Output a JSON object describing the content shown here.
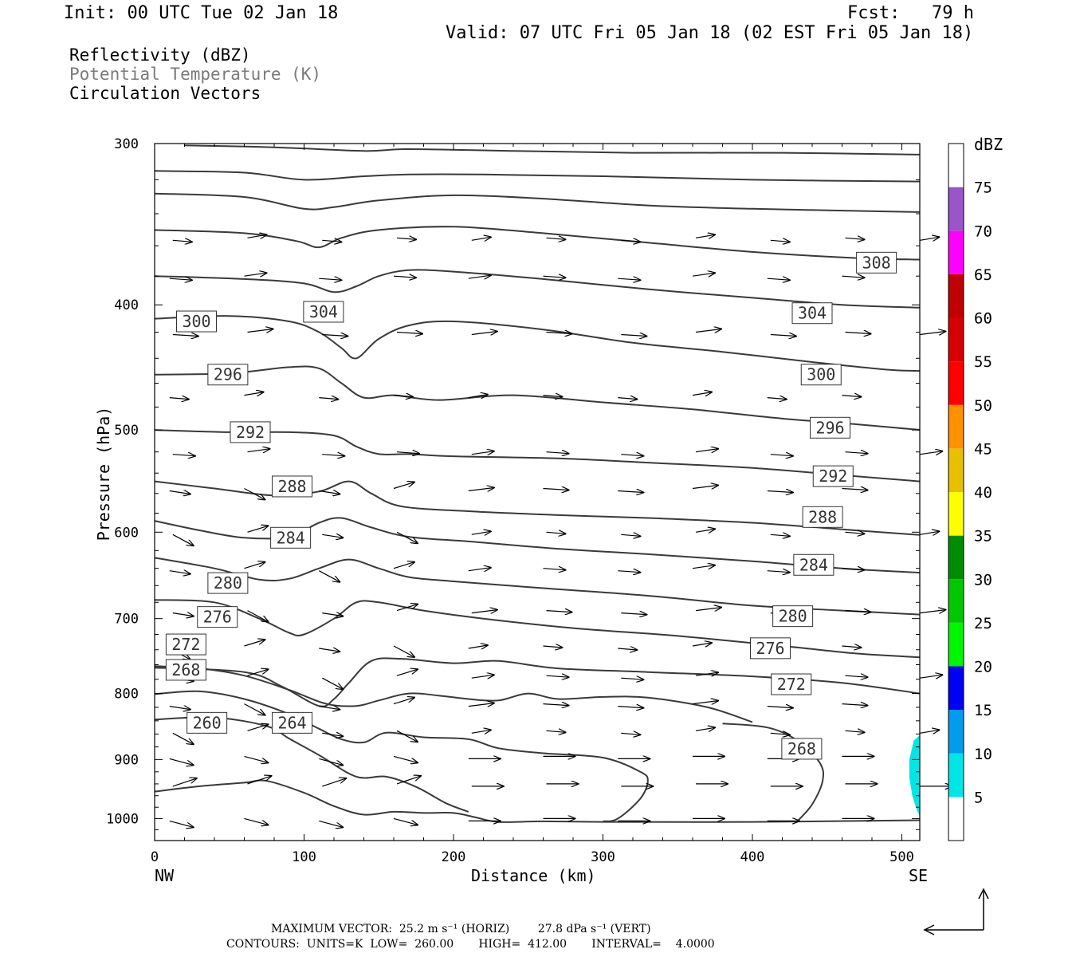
{
  "header": {
    "init": "Init: 00 UTC Tue 02 Jan 18",
    "fcst": "Fcst:   79 h",
    "valid": "Valid: 07 UTC Fri 05 Jan 18 (02 EST Fri 05 Jan 18)"
  },
  "fields": {
    "reflectivity": "Reflectivity (dBZ)",
    "theta": "Potential Temperature (K)",
    "vectors": "Circulation Vectors"
  },
  "chart_data": {
    "type": "line",
    "xlabel": "Distance (km)",
    "ylabel": "Pressure (hPa)",
    "xlim": [
      0,
      512
    ],
    "ylim": [
      1040,
      300
    ],
    "y_scale": "log",
    "x_ticks": [
      "0",
      "100",
      "200",
      "300",
      "400",
      "500"
    ],
    "x_tick_values": [
      0,
      100,
      200,
      300,
      400,
      500
    ],
    "y_ticks": [
      "300",
      "400",
      "500",
      "600",
      "700",
      "800",
      "900",
      "1000"
    ],
    "y_tick_values": [
      300,
      400,
      500,
      600,
      700,
      800,
      900,
      1000
    ],
    "endpoints": {
      "left": "NW",
      "right": "SE"
    },
    "isentropes": [
      {
        "label": "260",
        "lx": 35,
        "ly": 843,
        "pts": [
          [
            0,
            953
          ],
          [
            30,
            944
          ],
          [
            60,
            938
          ],
          [
            75,
            935
          ],
          [
            100,
            955
          ],
          [
            120,
            978
          ],
          [
            140,
            993
          ],
          [
            160,
            988
          ],
          [
            180,
            990
          ],
          [
            200,
            990
          ],
          [
            215,
            998
          ],
          [
            230,
            1006
          ],
          [
            260,
            1005
          ],
          [
            300,
            1006
          ],
          [
            400,
            1006
          ],
          [
            512,
            1003
          ]
        ]
      },
      {
        "label": "264",
        "lx": 92,
        "ly": 843,
        "pts": [
          [
            0,
            838
          ],
          [
            40,
            835
          ],
          [
            75,
            848
          ],
          [
            90,
            867
          ],
          [
            110,
            893
          ],
          [
            135,
            928
          ],
          [
            155,
            928
          ],
          [
            175,
            945
          ],
          [
            195,
            973
          ],
          [
            210,
            988
          ]
        ]
      },
      {
        "label": "268",
        "lx": 433,
        "ly": 883,
        "pts": [
          [
            0,
            801
          ],
          [
            30,
            797
          ],
          [
            60,
            808
          ],
          [
            90,
            830
          ],
          [
            110,
            852
          ],
          [
            125,
            868
          ],
          [
            140,
            873
          ],
          [
            155,
            858
          ],
          [
            180,
            865
          ],
          [
            210,
            868
          ],
          [
            230,
            882
          ],
          [
            260,
            890
          ],
          [
            300,
            897
          ],
          [
            325,
            920
          ],
          [
            330,
            935
          ],
          [
            325,
            965
          ],
          [
            310,
            1000
          ],
          [
            300,
            1005
          ]
        ]
      },
      {
        "label": "268b",
        "hide": true,
        "pts": [
          [
            380,
            844
          ],
          [
            410,
            850
          ],
          [
            430,
            870
          ],
          [
            445,
            905
          ],
          [
            447,
            935
          ],
          [
            440,
            975
          ],
          [
            430,
            1005
          ]
        ]
      },
      {
        "label": "272",
        "lx": 426,
        "ly": 787,
        "pts": [
          [
            0,
            762
          ],
          [
            30,
            765
          ],
          [
            60,
            775
          ],
          [
            90,
            795
          ],
          [
            115,
            815
          ],
          [
            135,
            818
          ],
          [
            150,
            810
          ],
          [
            170,
            800
          ],
          [
            190,
            803
          ],
          [
            210,
            808
          ],
          [
            230,
            810
          ],
          [
            250,
            800
          ],
          [
            270,
            808
          ],
          [
            300,
            805
          ],
          [
            330,
            806
          ],
          [
            370,
            820
          ],
          [
            400,
            842
          ]
        ]
      },
      {
        "label": "272b",
        "hide": true,
        "pts": [
          [
            0,
            764
          ],
          [
            60,
            770
          ],
          [
            85,
            790
          ],
          [
            110,
            818
          ],
          [
            120,
            808
          ],
          [
            130,
            785
          ],
          [
            145,
            755
          ],
          [
            165,
            752
          ],
          [
            200,
            758
          ],
          [
            230,
            755
          ],
          [
            270,
            765
          ],
          [
            330,
            770
          ],
          [
            400,
            776
          ],
          [
            460,
            785
          ],
          [
            512,
            800
          ]
        ]
      },
      {
        "label": "276",
        "lx": 412,
        "ly": 738,
        "pts": [
          [
            0,
            677
          ],
          [
            40,
            680
          ],
          [
            70,
            700
          ],
          [
            90,
            718
          ],
          [
            100,
            720
          ],
          [
            120,
            700
          ],
          [
            135,
            680
          ],
          [
            150,
            680
          ],
          [
            180,
            690
          ],
          [
            220,
            700
          ],
          [
            280,
            712
          ],
          [
            350,
            722
          ],
          [
            420,
            735
          ],
          [
            470,
            745
          ],
          [
            512,
            750
          ]
        ]
      },
      {
        "label": "280",
        "lx": 427,
        "ly": 697,
        "pts": [
          [
            0,
            628
          ],
          [
            40,
            640
          ],
          [
            70,
            653
          ],
          [
            90,
            652
          ],
          [
            110,
            640
          ],
          [
            130,
            630
          ],
          [
            150,
            640
          ],
          [
            170,
            650
          ],
          [
            200,
            655
          ],
          [
            260,
            663
          ],
          [
            330,
            672
          ],
          [
            400,
            684
          ],
          [
            460,
            690
          ],
          [
            512,
            695
          ]
        ]
      },
      {
        "label": "284",
        "lx": 441,
        "ly": 636,
        "pts": [
          [
            0,
            588
          ],
          [
            30,
            598
          ],
          [
            60,
            606
          ],
          [
            90,
            605
          ],
          [
            110,
            590
          ],
          [
            125,
            585
          ],
          [
            145,
            595
          ],
          [
            170,
            605
          ],
          [
            210,
            610
          ],
          [
            270,
            618
          ],
          [
            330,
            624
          ],
          [
            400,
            632
          ],
          [
            460,
            640
          ],
          [
            512,
            645
          ]
        ]
      },
      {
        "label": "288",
        "lx": 447,
        "ly": 584,
        "pts": [
          [
            0,
            548
          ],
          [
            40,
            555
          ],
          [
            80,
            562
          ],
          [
            110,
            558
          ],
          [
            130,
            548
          ],
          [
            145,
            560
          ],
          [
            165,
            573
          ],
          [
            210,
            578
          ],
          [
            270,
            582
          ],
          [
            330,
            585
          ],
          [
            400,
            590
          ],
          [
            460,
            597
          ],
          [
            512,
            603
          ]
        ]
      },
      {
        "label": "292",
        "lx": 454,
        "ly": 543,
        "pts": [
          [
            0,
            500
          ],
          [
            50,
            502
          ],
          [
            90,
            502
          ],
          [
            120,
            505
          ],
          [
            135,
            515
          ],
          [
            150,
            522
          ],
          [
            170,
            522
          ],
          [
            200,
            524
          ],
          [
            270,
            526
          ],
          [
            330,
            530
          ],
          [
            400,
            535
          ],
          [
            460,
            542
          ],
          [
            512,
            548
          ]
        ]
      },
      {
        "label": "296",
        "lx": 452,
        "ly": 498,
        "pts": [
          [
            0,
            453
          ],
          [
            50,
            452
          ],
          [
            90,
            447
          ],
          [
            110,
            448
          ],
          [
            125,
            460
          ],
          [
            140,
            472
          ],
          [
            160,
            470
          ],
          [
            190,
            474
          ],
          [
            240,
            470
          ],
          [
            300,
            476
          ],
          [
            360,
            482
          ],
          [
            420,
            490
          ],
          [
            470,
            495
          ],
          [
            512,
            500
          ]
        ]
      },
      {
        "label": "300",
        "lx": 446,
        "ly": 453,
        "pts": [
          [
            0,
            410
          ],
          [
            50,
            408
          ],
          [
            90,
            412
          ],
          [
            110,
            420
          ],
          [
            125,
            432
          ],
          [
            135,
            440
          ],
          [
            150,
            425
          ],
          [
            170,
            415
          ],
          [
            200,
            412
          ],
          [
            260,
            418
          ],
          [
            320,
            428
          ],
          [
            380,
            435
          ],
          [
            440,
            443
          ],
          [
            490,
            449
          ],
          [
            512,
            450
          ]
        ]
      },
      {
        "label": "304",
        "lx": 440,
        "ly": 406,
        "pts": [
          [
            0,
            380
          ],
          [
            60,
            382
          ],
          [
            100,
            385
          ],
          [
            120,
            391
          ],
          [
            135,
            387
          ],
          [
            150,
            380
          ],
          [
            170,
            376
          ],
          [
            200,
            377
          ],
          [
            260,
            382
          ],
          [
            330,
            389
          ],
          [
            400,
            395
          ],
          [
            460,
            400
          ],
          [
            512,
            402
          ]
        ]
      },
      {
        "label": "308",
        "lx": 483,
        "ly": 371,
        "pts": [
          [
            0,
            350
          ],
          [
            60,
            352
          ],
          [
            95,
            357
          ],
          [
            110,
            361
          ],
          [
            125,
            355
          ],
          [
            150,
            350
          ],
          [
            200,
            348
          ],
          [
            260,
            352
          ],
          [
            330,
            358
          ],
          [
            400,
            364
          ],
          [
            470,
            368
          ],
          [
            512,
            369
          ]
        ]
      },
      {
        "label": "312",
        "hide": true,
        "pts": [
          [
            0,
            328
          ],
          [
            60,
            330
          ],
          [
            100,
            337
          ],
          [
            120,
            336
          ],
          [
            150,
            332
          ],
          [
            200,
            329
          ],
          [
            260,
            331
          ],
          [
            330,
            335
          ],
          [
            400,
            337
          ],
          [
            512,
            339
          ]
        ]
      },
      {
        "label": "316",
        "hide": true,
        "pts": [
          [
            0,
            315
          ],
          [
            60,
            316
          ],
          [
            100,
            320
          ],
          [
            140,
            318
          ],
          [
            170,
            317
          ],
          [
            220,
            317
          ],
          [
            300,
            318
          ],
          [
            400,
            320
          ],
          [
            512,
            321
          ]
        ]
      },
      {
        "label": "320",
        "hide": true,
        "pts": [
          [
            20,
            301
          ],
          [
            80,
            302
          ],
          [
            140,
            304
          ],
          [
            170,
            303
          ],
          [
            240,
            304
          ],
          [
            320,
            305
          ],
          [
            420,
            305
          ],
          [
            512,
            306
          ]
        ]
      }
    ],
    "theta_labels": [
      {
        "text": "300",
        "x": 28,
        "p": 412
      },
      {
        "text": "304",
        "x": 113,
        "p": 405
      },
      {
        "text": "308",
        "x": 483,
        "p": 371
      },
      {
        "text": "304",
        "x": 440,
        "p": 406
      },
      {
        "text": "296",
        "x": 49,
        "p": 453
      },
      {
        "text": "300",
        "x": 446,
        "p": 453
      },
      {
        "text": "292",
        "x": 64,
        "p": 502
      },
      {
        "text": "296",
        "x": 452,
        "p": 498
      },
      {
        "text": "288",
        "x": 92,
        "p": 553
      },
      {
        "text": "292",
        "x": 454,
        "p": 543
      },
      {
        "text": "284",
        "x": 91,
        "p": 606
      },
      {
        "text": "288",
        "x": 447,
        "p": 584
      },
      {
        "text": "280",
        "x": 49,
        "p": 657
      },
      {
        "text": "284",
        "x": 441,
        "p": 636
      },
      {
        "text": "276",
        "x": 42,
        "p": 698
      },
      {
        "text": "280",
        "x": 427,
        "p": 697
      },
      {
        "text": "272",
        "x": 21,
        "p": 733
      },
      {
        "text": "276",
        "x": 412,
        "p": 738
      },
      {
        "text": "268",
        "x": 21,
        "p": 767
      },
      {
        "text": "272",
        "x": 426,
        "p": 787
      },
      {
        "text": "260",
        "x": 35,
        "p": 843
      },
      {
        "text": "264",
        "x": 92,
        "p": 843
      },
      {
        "text": "268",
        "x": 433,
        "p": 883
      }
    ],
    "reflectivity_patch": {
      "color": "#00e5e5",
      "pts": [
        [
          512,
          862
        ],
        [
          508,
          870
        ],
        [
          505,
          900
        ],
        [
          505,
          930
        ],
        [
          507,
          960
        ],
        [
          510,
          985
        ],
        [
          512,
          995
        ]
      ]
    },
    "colorbar": {
      "unit": "dBZ",
      "levels": [
        "5",
        "10",
        "15",
        "20",
        "25",
        "30",
        "35",
        "40",
        "45",
        "50",
        "55",
        "60",
        "65",
        "70",
        "75"
      ],
      "colors": [
        "#00e5e5",
        "#009ded",
        "#0000f5",
        "#00f500",
        "#00c800",
        "#008c00",
        "#ffff00",
        "#e7c000",
        "#ff9000",
        "#ff0000",
        "#d60000",
        "#c00000",
        "#ff00ff",
        "#9955c9",
        "#ffffff"
      ]
    }
  },
  "arrow_legend": {
    "name": "reference-vector"
  },
  "footer": {
    "line1": "MAXIMUM VECTOR:  25.2 m s⁻¹ (HORIZ)        27.8 dPa s⁻¹ (VERT)",
    "line2": "CONTOURS:  UNITS=K  LOW=  260.00       HIGH=  412.00       INTERVAL=    4.0000"
  }
}
